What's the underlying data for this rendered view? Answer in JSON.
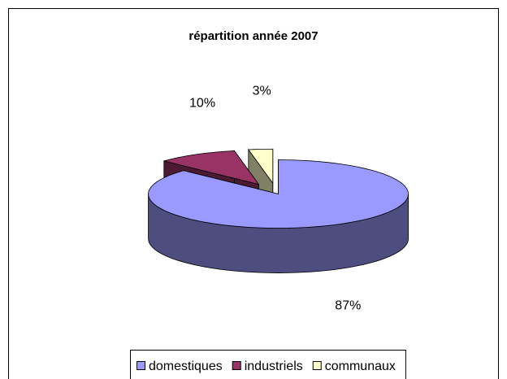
{
  "chart_data": {
    "type": "pie3d",
    "title": "répartition année 2007",
    "categories": [
      "domestiques",
      "industriels",
      "communaux"
    ],
    "values": [
      87,
      10,
      3
    ],
    "value_labels": [
      "87%",
      "10%",
      "3%"
    ],
    "colors": [
      "#9999ff",
      "#993366",
      "#ffffcc"
    ],
    "legend": "bottom"
  }
}
